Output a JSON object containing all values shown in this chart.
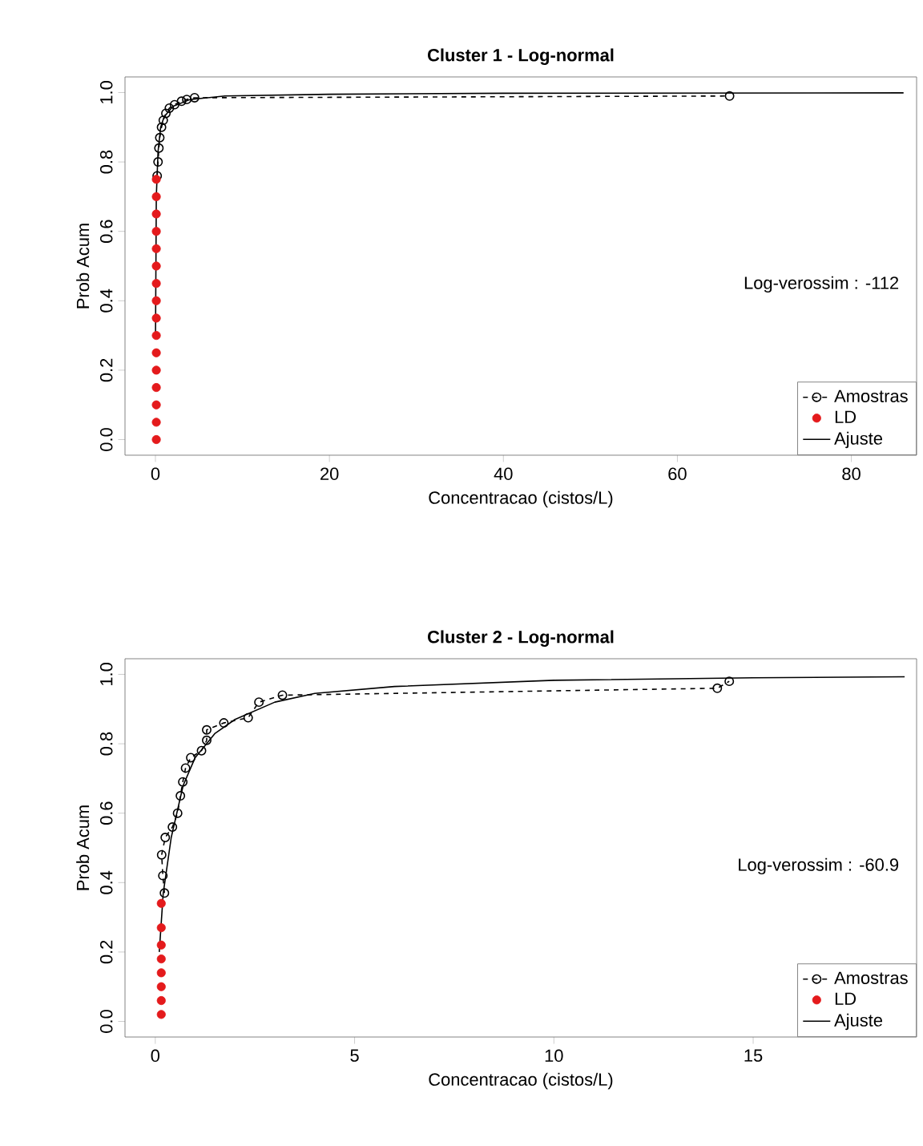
{
  "chart_data": [
    {
      "type": "line",
      "title": "Cluster 1 - Log-normal",
      "xlabel": "Concentracao (cistos/L)",
      "ylabel": "Prob Acum",
      "xlim": [
        -3.5,
        87.5
      ],
      "ylim": [
        -0.045,
        1.045
      ],
      "xticks": [
        0,
        20,
        40,
        60,
        80
      ],
      "yticks": [
        {
          "value": 0,
          "label": "0.0"
        },
        {
          "value": 0.2,
          "label": "0.2"
        },
        {
          "value": 0.4,
          "label": "0.4"
        },
        {
          "value": 0.6,
          "label": "0.6"
        },
        {
          "value": 0.8,
          "label": "0.8"
        },
        {
          "value": 1,
          "label": "1.0"
        }
      ],
      "legend": "bottom right",
      "annotations": [
        "Log-verossim : -112"
      ],
      "series": [
        {
          "name": "Amostras",
          "color": "#000000",
          "marker": "circle",
          "line_style": "dashed",
          "x": [
            0.2,
            0.3,
            0.4,
            0.5,
            0.7,
            0.9,
            1.2,
            1.6,
            2.2,
            3,
            3.6,
            4.5,
            66
          ],
          "values": [
            0.76,
            0.8,
            0.84,
            0.87,
            0.9,
            0.92,
            0.94,
            0.955,
            0.965,
            0.975,
            0.98,
            0.985,
            0.99
          ]
        },
        {
          "name": "LD",
          "type": "scatter",
          "color": "#e41a1c",
          "marker": "circle",
          "x": [
            0.1,
            0.1,
            0.1,
            0.1,
            0.1,
            0.1,
            0.1,
            0.1,
            0.1,
            0.1,
            0.1,
            0.1,
            0.1,
            0.1,
            0.1,
            0.1
          ],
          "values": [
            0,
            0.05,
            0.1,
            0.15,
            0.2,
            0.25,
            0.3,
            0.35,
            0.4,
            0.45,
            0.5,
            0.55,
            0.6,
            0.65,
            0.7,
            0.75
          ]
        },
        {
          "name": "Ajuste",
          "color": "#000000",
          "marker": "none",
          "line_style": "solid",
          "x": [
            0.01,
            0.1,
            0.3,
            0.6,
            1,
            2,
            4,
            8,
            20,
            40,
            86
          ],
          "values": [
            0.3,
            0.7,
            0.83,
            0.9,
            0.93,
            0.96,
            0.98,
            0.99,
            0.995,
            0.998,
            0.999
          ]
        }
      ]
    },
    {
      "type": "line",
      "title": "Cluster 2 - Log-normal",
      "xlabel": "Concentracao (cistos/L)",
      "ylabel": "Prob Acum",
      "xlim": [
        -0.76,
        19.1
      ],
      "ylim": [
        -0.045,
        1.045
      ],
      "xticks": [
        0,
        5,
        10,
        15
      ],
      "yticks": [
        {
          "value": 0,
          "label": "0.0"
        },
        {
          "value": 0.2,
          "label": "0.2"
        },
        {
          "value": 0.4,
          "label": "0.4"
        },
        {
          "value": 0.6,
          "label": "0.6"
        },
        {
          "value": 0.8,
          "label": "0.8"
        },
        {
          "value": 1,
          "label": "1.0"
        }
      ],
      "legend": "bottom right",
      "annotations": [
        "Log-verossim : -60.9"
      ],
      "series": [
        {
          "name": "Amostras",
          "color": "#000000",
          "marker": "circle",
          "line_style": "dashed",
          "x": [
            0.23,
            0.19,
            0.16,
            0.25,
            0.43,
            0.56,
            0.63,
            0.69,
            0.76,
            0.89,
            1.16,
            1.29,
            1.29,
            1.72,
            2.33,
            2.6,
            3.19,
            14.1,
            14.4
          ],
          "values": [
            0.37,
            0.42,
            0.48,
            0.53,
            0.56,
            0.6,
            0.65,
            0.69,
            0.73,
            0.76,
            0.78,
            0.81,
            0.84,
            0.86,
            0.875,
            0.92,
            0.94,
            0.96,
            0.98
          ]
        },
        {
          "name": "LD",
          "type": "scatter",
          "color": "#e41a1c",
          "marker": "circle",
          "x": [
            0.15,
            0.15,
            0.15,
            0.15,
            0.15,
            0.15,
            0.15,
            0.15
          ],
          "values": [
            0.02,
            0.06,
            0.1,
            0.14,
            0.18,
            0.22,
            0.27,
            0.34
          ]
        },
        {
          "name": "Ajuste",
          "color": "#000000",
          "marker": "none",
          "line_style": "solid",
          "x": [
            0.1,
            0.2,
            0.4,
            0.7,
            1,
            1.5,
            2,
            3,
            4,
            6,
            10,
            15,
            18.8
          ],
          "values": [
            0.2,
            0.37,
            0.53,
            0.68,
            0.76,
            0.83,
            0.87,
            0.92,
            0.945,
            0.965,
            0.983,
            0.99,
            0.993
          ]
        }
      ]
    }
  ]
}
